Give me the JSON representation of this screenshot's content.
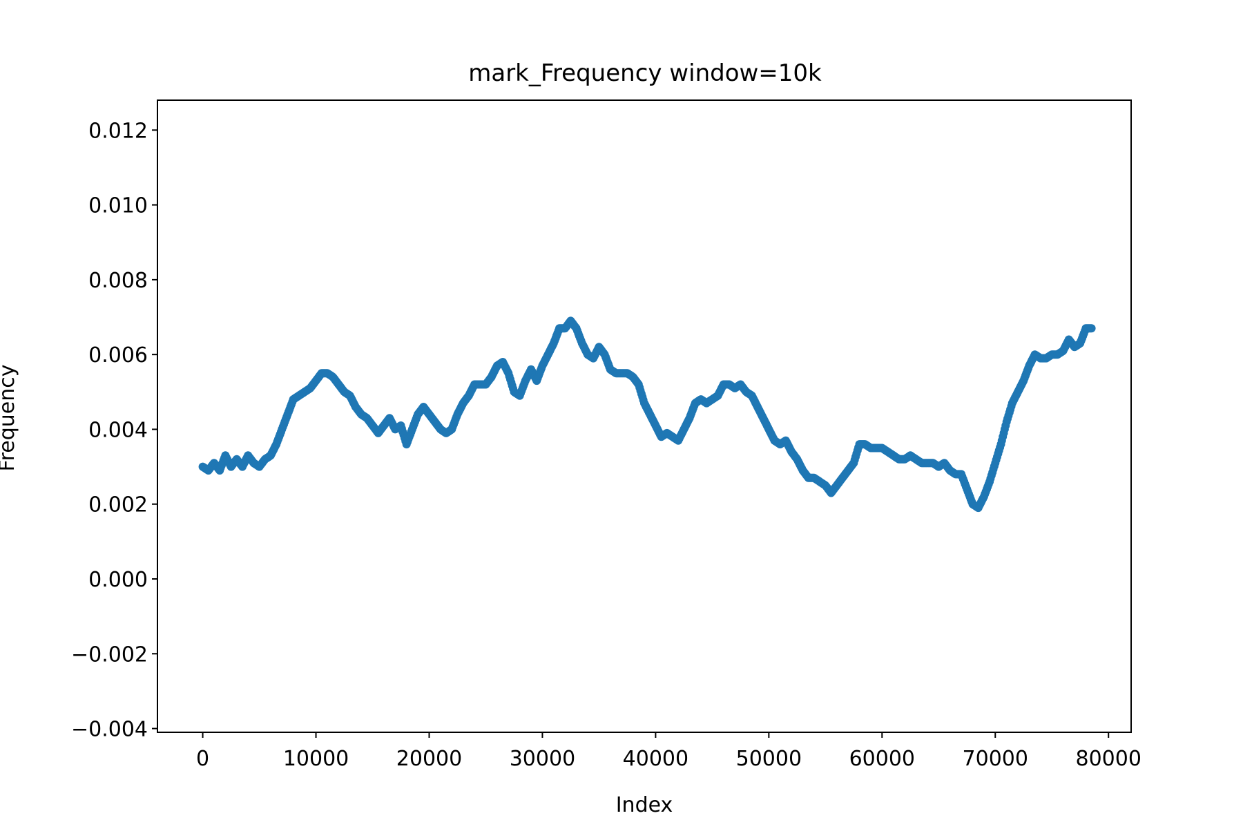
{
  "chart_data": {
    "type": "scatter",
    "title": "mark_Frequency window=10k",
    "xlabel": "Index",
    "ylabel": "Frequency",
    "xlim": [
      -4000,
      82000
    ],
    "ylim": [
      -0.0041,
      0.0128
    ],
    "x_ticks": [
      0,
      10000,
      20000,
      30000,
      40000,
      50000,
      60000,
      70000,
      80000
    ],
    "x_tick_labels": [
      "0",
      "10000",
      "20000",
      "30000",
      "40000",
      "50000",
      "60000",
      "70000",
      "80000"
    ],
    "y_ticks": [
      -0.004,
      -0.002,
      0.0,
      0.002,
      0.004,
      0.006,
      0.008,
      0.01,
      0.012
    ],
    "y_tick_labels": [
      "−0.004",
      "−0.002",
      "0.000",
      "0.002",
      "0.004",
      "0.006",
      "0.008",
      "0.010",
      "0.012"
    ],
    "grid": false,
    "series": [
      {
        "color": "#1f77b4",
        "points": [
          [
            0,
            0.003
          ],
          [
            500,
            0.0029
          ],
          [
            1000,
            0.0031
          ],
          [
            1500,
            0.0029
          ],
          [
            2000,
            0.0033
          ],
          [
            2500,
            0.003
          ],
          [
            3000,
            0.0032
          ],
          [
            3500,
            0.003
          ],
          [
            4000,
            0.0033
          ],
          [
            4500,
            0.0031
          ],
          [
            5000,
            0.003
          ],
          [
            5500,
            0.0032
          ],
          [
            6000,
            0.0033
          ],
          [
            6500,
            0.0036
          ],
          [
            7000,
            0.004
          ],
          [
            7500,
            0.0044
          ],
          [
            8000,
            0.0048
          ],
          [
            8500,
            0.0049
          ],
          [
            9000,
            0.005
          ],
          [
            9500,
            0.0051
          ],
          [
            10000,
            0.0053
          ],
          [
            10500,
            0.0055
          ],
          [
            11000,
            0.0055
          ],
          [
            11500,
            0.0054
          ],
          [
            12000,
            0.0052
          ],
          [
            12500,
            0.005
          ],
          [
            13000,
            0.0049
          ],
          [
            13500,
            0.0046
          ],
          [
            14000,
            0.0044
          ],
          [
            14500,
            0.0043
          ],
          [
            15000,
            0.0041
          ],
          [
            15500,
            0.0039
          ],
          [
            16000,
            0.0041
          ],
          [
            16500,
            0.0043
          ],
          [
            17000,
            0.004
          ],
          [
            17500,
            0.0041
          ],
          [
            18000,
            0.0036
          ],
          [
            18500,
            0.004
          ],
          [
            19000,
            0.0044
          ],
          [
            19500,
            0.0046
          ],
          [
            20000,
            0.0044
          ],
          [
            20500,
            0.0042
          ],
          [
            21000,
            0.004
          ],
          [
            21500,
            0.0039
          ],
          [
            22000,
            0.004
          ],
          [
            22500,
            0.0044
          ],
          [
            23000,
            0.0047
          ],
          [
            23500,
            0.0049
          ],
          [
            24000,
            0.0052
          ],
          [
            24500,
            0.0052
          ],
          [
            25000,
            0.0052
          ],
          [
            25500,
            0.0054
          ],
          [
            26000,
            0.0057
          ],
          [
            26500,
            0.0058
          ],
          [
            27000,
            0.0055
          ],
          [
            27500,
            0.005
          ],
          [
            28000,
            0.0049
          ],
          [
            28500,
            0.0053
          ],
          [
            29000,
            0.0056
          ],
          [
            29500,
            0.0053
          ],
          [
            30000,
            0.0057
          ],
          [
            30500,
            0.006
          ],
          [
            31000,
            0.0063
          ],
          [
            31500,
            0.0067
          ],
          [
            32000,
            0.0067
          ],
          [
            32500,
            0.0069
          ],
          [
            33000,
            0.0067
          ],
          [
            33500,
            0.0063
          ],
          [
            34000,
            0.006
          ],
          [
            34500,
            0.0059
          ],
          [
            35000,
            0.0062
          ],
          [
            35500,
            0.006
          ],
          [
            36000,
            0.0056
          ],
          [
            36500,
            0.0055
          ],
          [
            37000,
            0.0055
          ],
          [
            37500,
            0.0055
          ],
          [
            38000,
            0.0054
          ],
          [
            38500,
            0.0052
          ],
          [
            39000,
            0.0047
          ],
          [
            39500,
            0.0044
          ],
          [
            40000,
            0.0041
          ],
          [
            40500,
            0.0038
          ],
          [
            41000,
            0.0039
          ],
          [
            41500,
            0.0038
          ],
          [
            42000,
            0.0037
          ],
          [
            42500,
            0.004
          ],
          [
            43000,
            0.0043
          ],
          [
            43500,
            0.0047
          ],
          [
            44000,
            0.0048
          ],
          [
            44500,
            0.0047
          ],
          [
            45000,
            0.0048
          ],
          [
            45500,
            0.0049
          ],
          [
            46000,
            0.0052
          ],
          [
            46500,
            0.0052
          ],
          [
            47000,
            0.0051
          ],
          [
            47500,
            0.0052
          ],
          [
            48000,
            0.005
          ],
          [
            48500,
            0.0049
          ],
          [
            49000,
            0.0046
          ],
          [
            49500,
            0.0043
          ],
          [
            50000,
            0.004
          ],
          [
            50500,
            0.0037
          ],
          [
            51000,
            0.0036
          ],
          [
            51500,
            0.0037
          ],
          [
            52000,
            0.0034
          ],
          [
            52500,
            0.0032
          ],
          [
            53000,
            0.0029
          ],
          [
            53500,
            0.0027
          ],
          [
            54000,
            0.0027
          ],
          [
            54500,
            0.0026
          ],
          [
            55000,
            0.0025
          ],
          [
            55500,
            0.0023
          ],
          [
            56000,
            0.0025
          ],
          [
            56500,
            0.0027
          ],
          [
            57000,
            0.0029
          ],
          [
            57500,
            0.0031
          ],
          [
            58000,
            0.0036
          ],
          [
            58500,
            0.0036
          ],
          [
            59000,
            0.0035
          ],
          [
            59500,
            0.0035
          ],
          [
            60000,
            0.0035
          ],
          [
            60500,
            0.0034
          ],
          [
            61000,
            0.0033
          ],
          [
            61500,
            0.0032
          ],
          [
            62000,
            0.0032
          ],
          [
            62500,
            0.0033
          ],
          [
            63000,
            0.0032
          ],
          [
            63500,
            0.0031
          ],
          [
            64000,
            0.0031
          ],
          [
            64500,
            0.0031
          ],
          [
            65000,
            0.003
          ],
          [
            65500,
            0.0031
          ],
          [
            66000,
            0.0029
          ],
          [
            66500,
            0.0028
          ],
          [
            67000,
            0.0028
          ],
          [
            67500,
            0.0024
          ],
          [
            68000,
            0.002
          ],
          [
            68500,
            0.0019
          ],
          [
            69000,
            0.0022
          ],
          [
            69500,
            0.0026
          ],
          [
            70000,
            0.0031
          ],
          [
            70500,
            0.0036
          ],
          [
            71000,
            0.0042
          ],
          [
            71500,
            0.0047
          ],
          [
            72000,
            0.005
          ],
          [
            72500,
            0.0053
          ],
          [
            73000,
            0.0057
          ],
          [
            73500,
            0.006
          ],
          [
            74000,
            0.0059
          ],
          [
            74500,
            0.0059
          ],
          [
            75000,
            0.006
          ],
          [
            75500,
            0.006
          ],
          [
            76000,
            0.0061
          ],
          [
            76500,
            0.0064
          ],
          [
            77000,
            0.0062
          ],
          [
            77500,
            0.0063
          ],
          [
            78000,
            0.0067
          ],
          [
            78500,
            0.0067
          ]
        ]
      }
    ]
  }
}
